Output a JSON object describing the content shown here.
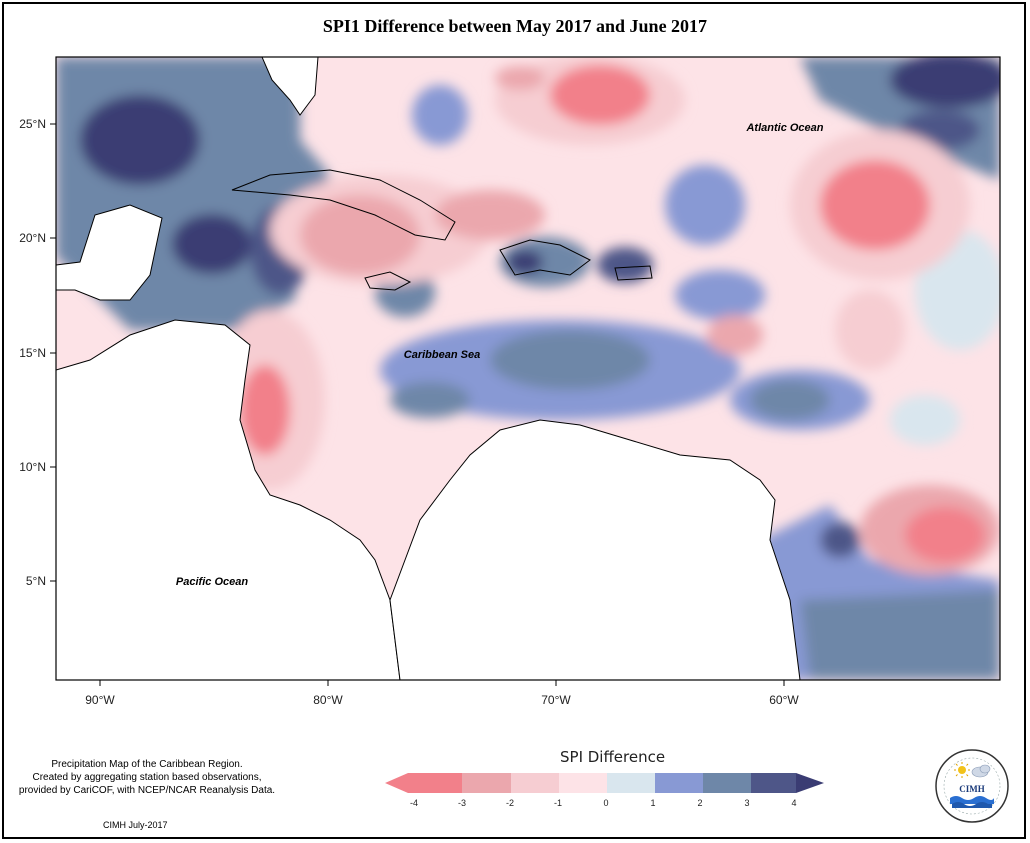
{
  "title": "SPI1 Difference between May 2017 and June 2017",
  "map_labels": {
    "atlantic": "Atlantic Ocean",
    "caribbean": "Caribbean Sea",
    "pacific": "Pacific Ocean"
  },
  "lat_ticks": [
    "25°N",
    "20°N",
    "15°N",
    "10°N",
    "5°N"
  ],
  "lon_ticks": [
    "90°W",
    "80°W",
    "70°W",
    "60°W"
  ],
  "caption_lines": [
    "Precipitation Map of the Caribbean Region.",
    "Created by aggregating station based observations,",
    "provided by CariCOF, with NCEP/NCAR Reanalysis Data."
  ],
  "credit": "CIMH July-2017",
  "legend": {
    "title": "SPI Difference",
    "ticks": [
      "-4",
      "-3",
      "-2",
      "-1",
      "0",
      "1",
      "2",
      "3",
      "4"
    ],
    "colors": [
      "#f2808a",
      "#eba7ad",
      "#f6cdd2",
      "#fde3e7",
      "#d9e6ee",
      "#8899d4",
      "#6e87a8",
      "#4e5688"
    ]
  },
  "logo": {
    "text": "CIMH",
    "icons": [
      "sun-icon",
      "cloud-icon",
      "wave-icon"
    ]
  },
  "colors": {
    "neg4": "#f2808a",
    "neg3": "#eba7ad",
    "neg2": "#f6cdd2",
    "neg1": "#fde3e7",
    "pos0": "#d9e6ee",
    "pos1": "#8899d4",
    "pos2": "#6e87a8",
    "pos3": "#4e5688",
    "pos4": "#3a3c73"
  }
}
